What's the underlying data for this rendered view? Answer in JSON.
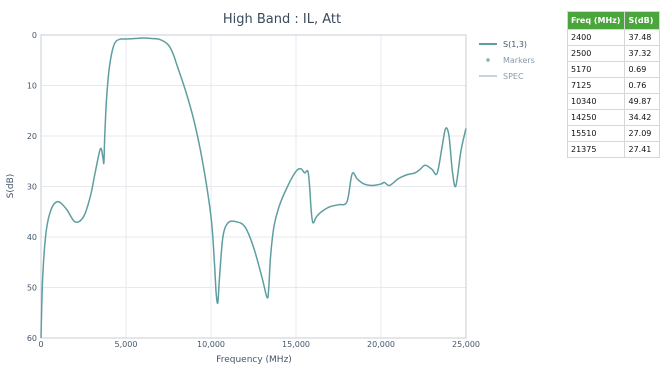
{
  "chart_data": {
    "type": "line",
    "title": "High Band : IL, Att",
    "xlabel": "Frequency (MHz)",
    "ylabel": "S(dB)",
    "xlim": [
      0,
      25000
    ],
    "ylim": [
      0,
      60
    ],
    "y_inverted": true,
    "x_ticks": [
      0,
      5000,
      10000,
      15000,
      20000,
      25000
    ],
    "x_tick_labels": [
      "0",
      "5,000",
      "10,000",
      "15,000",
      "20,000",
      "25,000"
    ],
    "y_ticks": [
      0,
      10,
      20,
      30,
      40,
      50,
      60
    ],
    "y_tick_labels": [
      "0",
      "10",
      "20",
      "30",
      "40",
      "50",
      "60"
    ],
    "grid": true,
    "legend_position": "right",
    "legend": [
      {
        "label": "S(1,3)",
        "color": "#5f9ea0",
        "kind": "line"
      },
      {
        "label": "Markers",
        "color": "#7ab8b8",
        "kind": "dot"
      },
      {
        "label": "SPEC",
        "color": "#c9d2dc",
        "kind": "line"
      }
    ],
    "series": [
      {
        "name": "S(1,3)",
        "color": "#5f9ea0",
        "x": [
          0,
          100,
          300,
          600,
          1000,
          1500,
          2000,
          2500,
          2900,
          3200,
          3500,
          3650,
          3700,
          3750,
          3850,
          4000,
          4200,
          4400,
          4700,
          5000,
          5500,
          6000,
          6500,
          7000,
          7500,
          7800,
          8000,
          8500,
          9000,
          9500,
          10000,
          10200,
          10300,
          10400,
          10500,
          10700,
          11000,
          11500,
          12000,
          12500,
          13000,
          13300,
          13400,
          13500,
          13700,
          14000,
          14500,
          15000,
          15300,
          15500,
          15700,
          15800,
          15900,
          16000,
          16200,
          16500,
          17000,
          17500,
          18000,
          18300,
          18600,
          19000,
          19500,
          20000,
          20200,
          20500,
          21000,
          21500,
          22000,
          22300,
          22600,
          23000,
          23300,
          23600,
          23800,
          24000,
          24200,
          24400,
          24700,
          25000
        ],
        "y": [
          60,
          48,
          39,
          34.5,
          33,
          34.5,
          37,
          36,
          32,
          27,
          22.5,
          24.5,
          25.2,
          20,
          13,
          7,
          3,
          1.3,
          0.8,
          0.8,
          0.7,
          0.6,
          0.7,
          0.9,
          2,
          4,
          6,
          11,
          17,
          25,
          36,
          45,
          51,
          53,
          48,
          40,
          37.2,
          37,
          38,
          42,
          48,
          52,
          50,
          44,
          38,
          34,
          30,
          27,
          26.5,
          27.3,
          27,
          30,
          35,
          37.2,
          36,
          35,
          34,
          33.6,
          33,
          27.5,
          28.5,
          29.5,
          29.8,
          29.5,
          29.2,
          29.8,
          28.5,
          27.7,
          27.3,
          26.6,
          25.8,
          26.6,
          27.4,
          22,
          18.5,
          20,
          27,
          29.9,
          23,
          18.5
        ]
      }
    ]
  },
  "marker_table": {
    "headers": [
      "Freq (MHz)",
      "S(dB)"
    ],
    "rows": [
      [
        "2400",
        "37.48"
      ],
      [
        "2500",
        "37.32"
      ],
      [
        "5170",
        "0.69"
      ],
      [
        "7125",
        "0.76"
      ],
      [
        "10340",
        "49.87"
      ],
      [
        "14250",
        "34.42"
      ],
      [
        "15510",
        "27.09"
      ],
      [
        "21375",
        "27.41"
      ]
    ]
  }
}
